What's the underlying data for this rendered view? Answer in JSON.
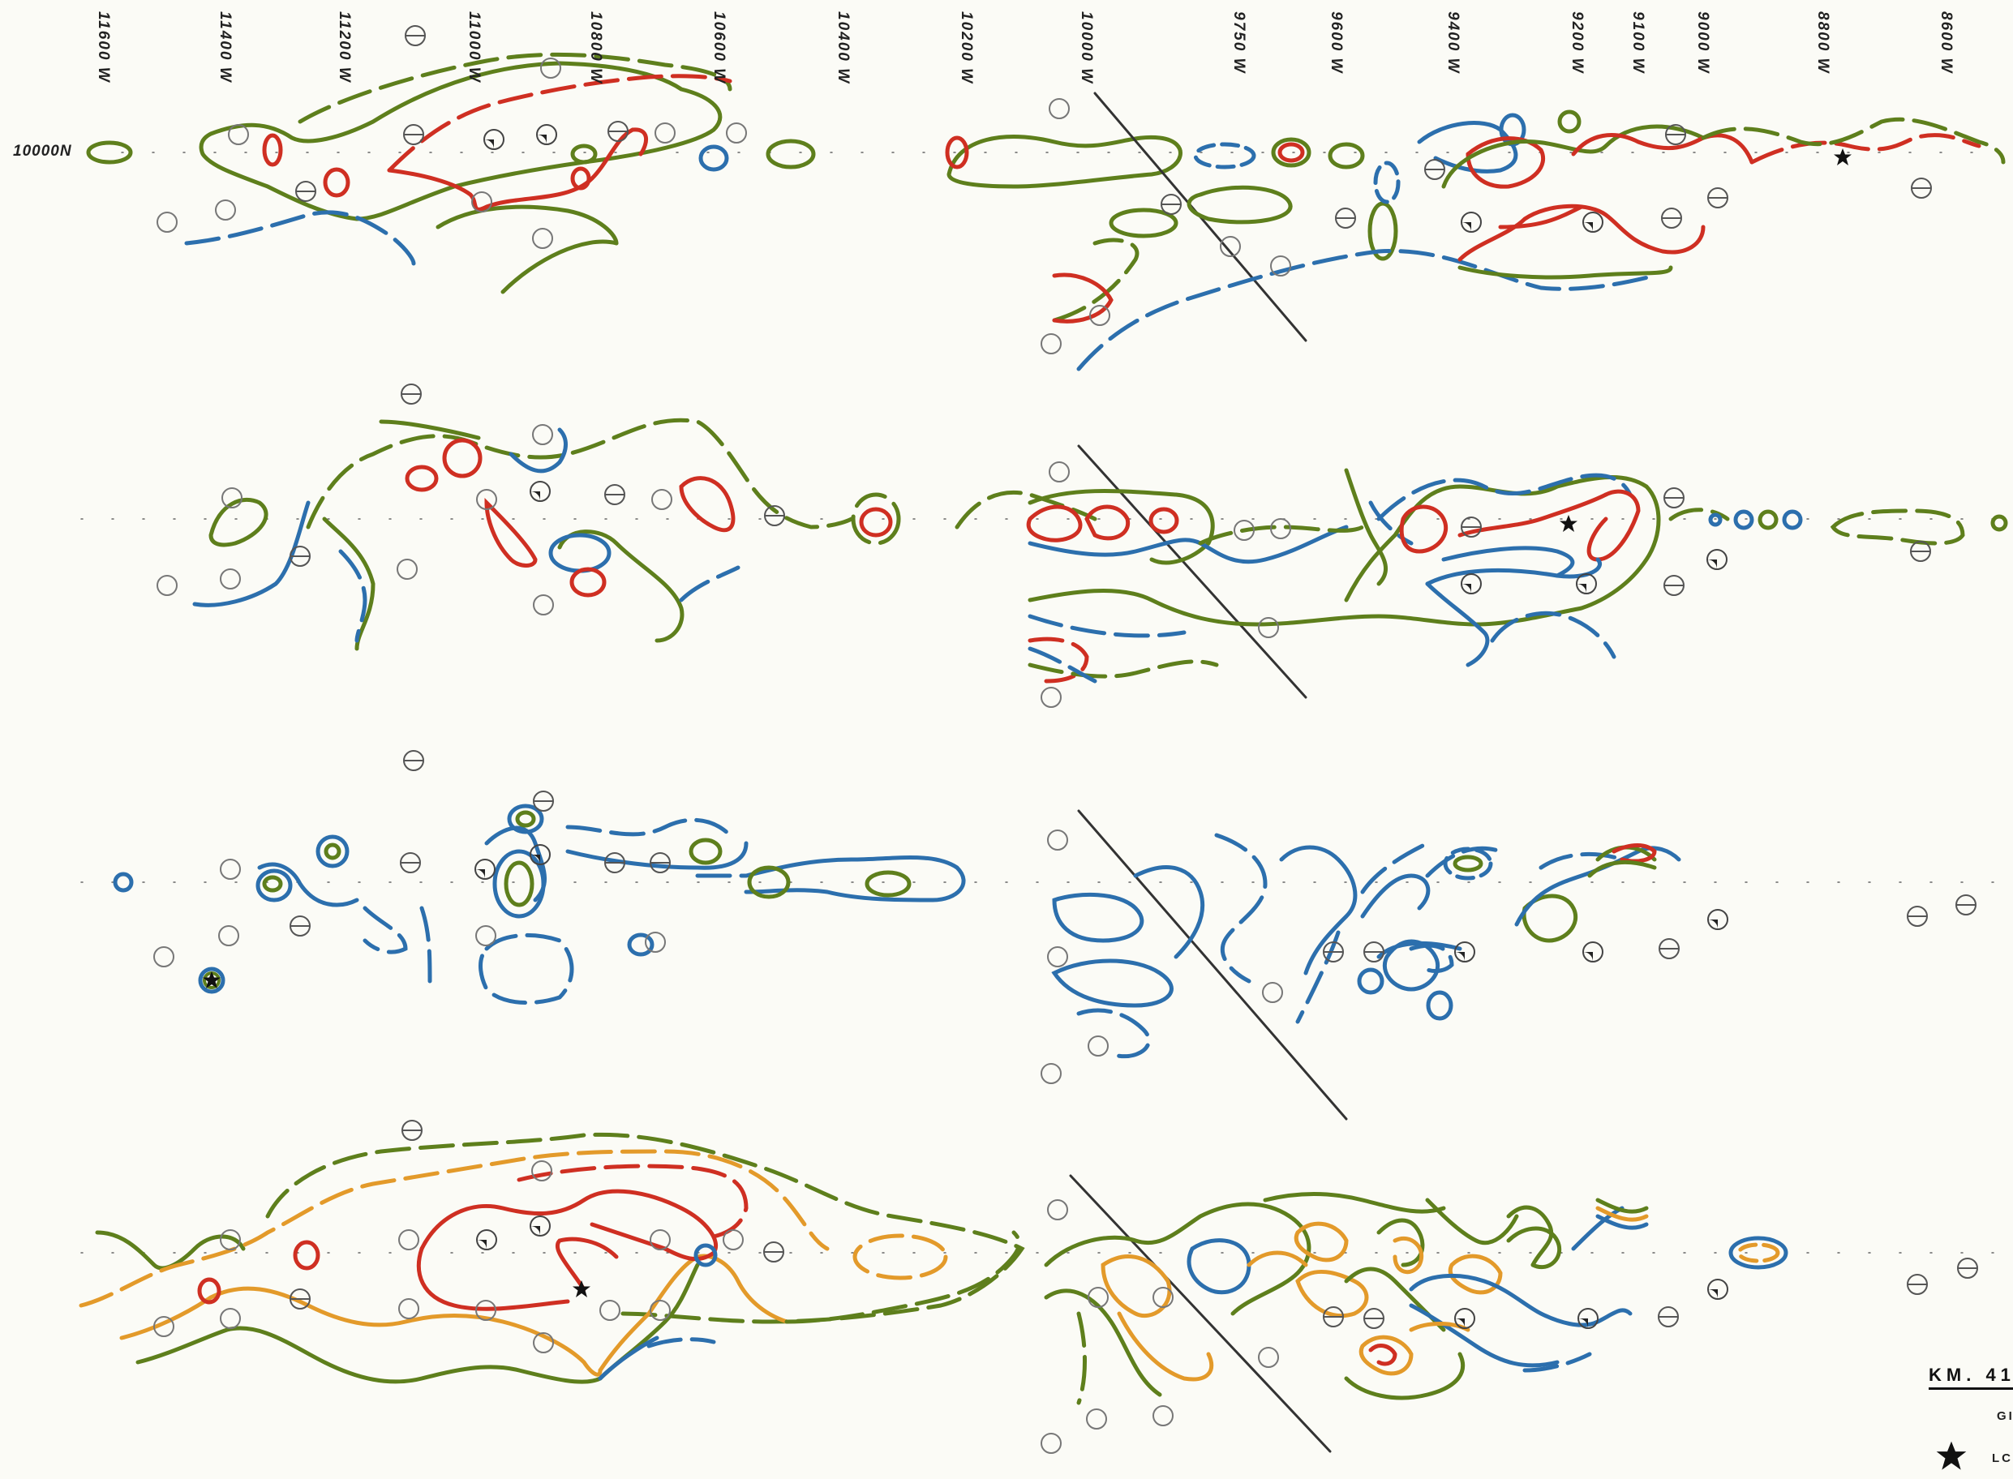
{
  "line_headers": [
    "11600 W",
    "11400 W",
    "11200 W",
    "11000 W",
    "10800 W",
    "10600 W",
    "10400 W",
    "10200 W",
    "10000 W",
    "9750 W",
    "9600 W",
    "9400 W",
    "9200 W",
    "9100 W",
    "9000 W",
    "8800 W",
    "8600 W"
  ],
  "row_label": "10000N",
  "title_fragment": "KM. 41",
  "subtitle_fragment": "GI",
  "legend": {
    "star_label_fragment": "LC",
    "star_icon": "star-icon"
  },
  "colors": {
    "red": "#cf2f22",
    "green": "#5e7f1c",
    "blue": "#2c6fad",
    "orange": "#e39a2a",
    "fault": "#333333"
  }
}
